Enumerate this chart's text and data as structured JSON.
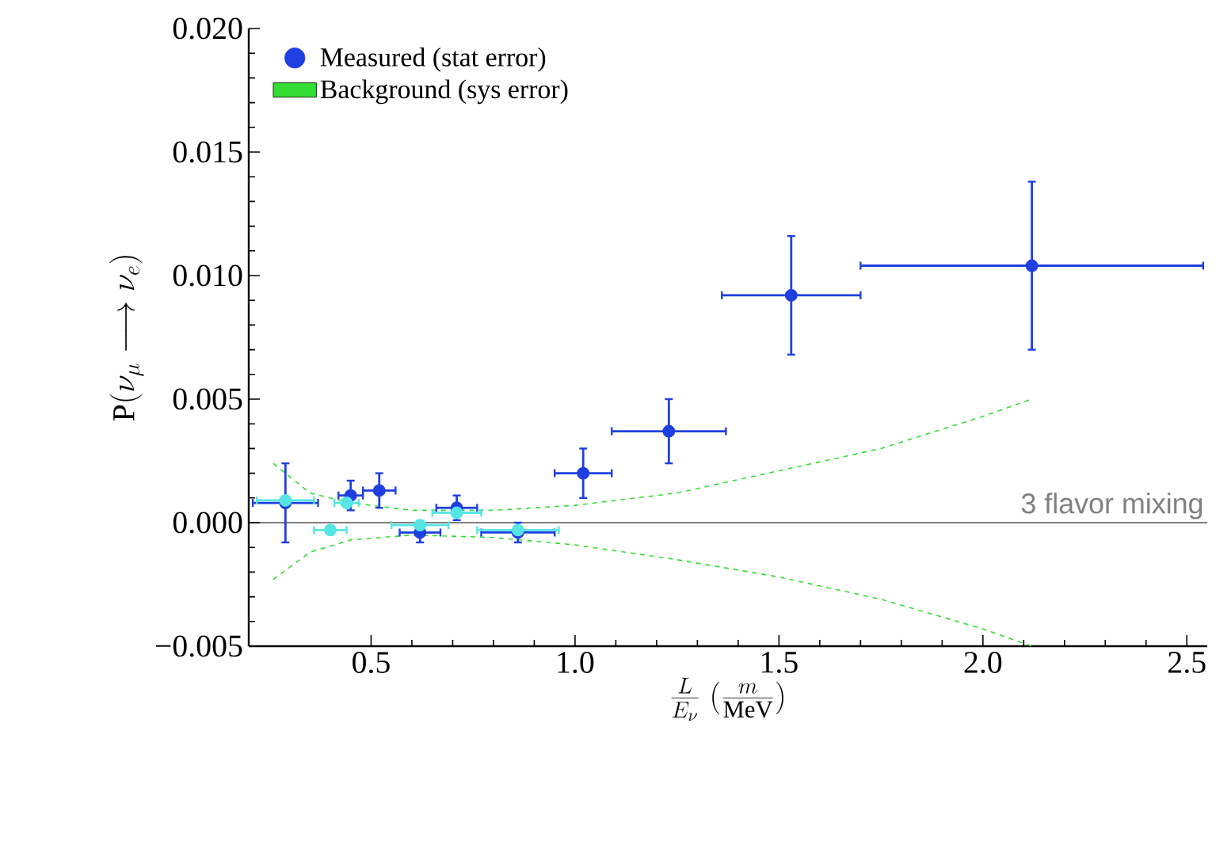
{
  "chart_data": {
    "type": "scatter",
    "xlabel": "\\frac{L}{E_{\\nu}}\\;\\Big(\\frac{m}{\\mathrm{MeV}}\\Big)",
    "ylabel": "\\mathrm{P}(\\nu_{\\mu}\\longrightarrow\\nu_{e})",
    "xlim": [
      0.2,
      2.55
    ],
    "ylim": [
      -0.005,
      0.02
    ],
    "xticks": [
      0.5,
      {
        "value": 1.0,
        "label": "1.0"
      },
      1.5,
      {
        "value": 2.0,
        "label": "2.0"
      },
      2.5
    ],
    "yticks": [
      {
        "value": -0.005,
        "label": "−0.005"
      },
      {
        "value": 0,
        "label": "0.000"
      },
      {
        "value": 0.005,
        "label": "0.005"
      },
      {
        "value": 0.01,
        "label": "0.010"
      },
      {
        "value": 0.015,
        "label": "0.015"
      },
      {
        "value": 0.02,
        "label": "0.020"
      }
    ],
    "legend": "top left",
    "grid": false,
    "ref_lines": [
      {
        "axis": "y",
        "value": 0,
        "label": "3 flavor mixing",
        "color": "#000000"
      }
    ],
    "series": [
      {
        "name": "Measured (stat error)",
        "marker": "circle",
        "color": "#1f3fe0",
        "x": [
          0.29,
          0.45,
          0.52,
          0.62,
          0.71,
          0.86,
          1.02,
          1.23,
          1.53,
          2.12
        ],
        "values": [
          0.0008,
          0.0011,
          0.0013,
          -0.0004,
          0.0006,
          -0.0004,
          0.002,
          0.0037,
          0.0092,
          0.0104
        ],
        "errors": [
          0.0016,
          0.0006,
          0.0007,
          0.0004,
          0.0005,
          0.0004,
          0.001,
          0.0013,
          0.0024,
          0.0034
        ],
        "xerrors": [
          0.08,
          0.03,
          0.04,
          0.05,
          0.05,
          0.09,
          0.07,
          0.14,
          0.17,
          0.42
        ]
      },
      {
        "name": "Background (sys error)",
        "type": "line",
        "marker": "none",
        "line_style": "dashed",
        "color": "#33dd33",
        "x": [
          0.26,
          0.35,
          0.45,
          0.6,
          0.8,
          1.0,
          1.25,
          1.5,
          1.75,
          2.0,
          2.12
        ],
        "values": [
          0.0024,
          0.0012,
          0.0008,
          0.0005,
          0.0005,
          0.0007,
          0.0012,
          0.0021,
          0.003,
          0.0043,
          0.005
        ]
      },
      {
        "type": "line",
        "marker": "none",
        "line_style": "dashed",
        "color": "#33dd33",
        "x": [
          0.26,
          0.35,
          0.45,
          0.6,
          0.8,
          1.0,
          1.25,
          1.5,
          1.75,
          2.0,
          2.12
        ],
        "values": [
          -0.0023,
          -0.0012,
          -0.0007,
          -0.0005,
          -0.0006,
          -0.0009,
          -0.0015,
          -0.0022,
          -0.0031,
          -0.0043,
          -0.005
        ]
      },
      {
        "marker": "circle",
        "color": "#55e5e5",
        "x": [
          0.29,
          0.4,
          0.44,
          0.62,
          0.71,
          0.86
        ],
        "values": [
          0.0009,
          -0.0003,
          0.0008,
          -0.0001,
          0.0004,
          -0.0003
        ],
        "xerrors": [
          0.07,
          0.04,
          0.03,
          0.07,
          0.06,
          0.1
        ]
      }
    ]
  }
}
